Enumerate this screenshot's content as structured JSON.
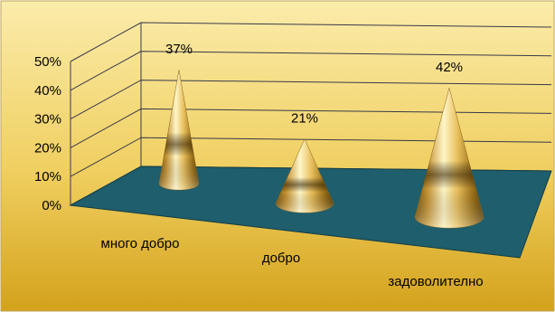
{
  "chart_data": {
    "type": "bar",
    "subtype": "3d-cone",
    "title": "",
    "xlabel": "",
    "ylabel": "",
    "categories": [
      "много добро",
      "добро",
      "задоволително"
    ],
    "values": [
      37,
      21,
      42
    ],
    "data_labels": [
      "37%",
      "21%",
      "42%"
    ],
    "y_ticks": [
      "0%",
      "10%",
      "20%",
      "30%",
      "40%",
      "50%"
    ],
    "ylim": [
      0,
      50
    ],
    "grid": true,
    "legend": "none",
    "colors": {
      "background_light": "#fbecab",
      "background_mid": "#f0cf60",
      "background_dark": "#d3a21c",
      "floor": "#1f5e6c",
      "cone_light": "#fff6c8",
      "cone_mid": "#d9a63a",
      "cone_dark": "#6e4c0a",
      "gridline": "#3a3a4a",
      "text": "#000000"
    }
  }
}
